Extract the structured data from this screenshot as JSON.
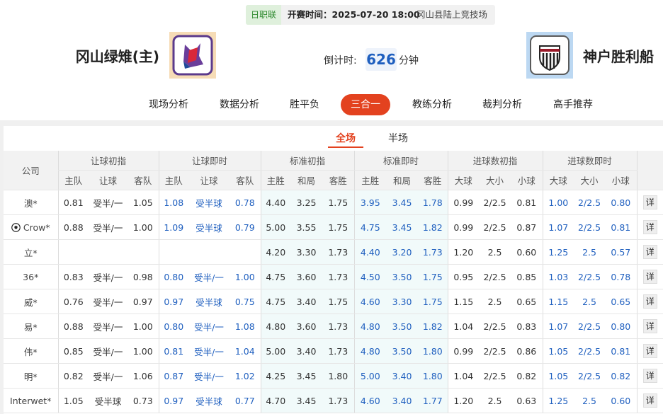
{
  "header": {
    "league": "日职联",
    "kickoff": "开赛时间：2025-07-20 18:00",
    "venue": "冈山县陆上竞技场"
  },
  "match": {
    "home": "冈山绿雉(主)",
    "countdown_label": "倒计时:",
    "countdown": "626",
    "countdown_unit": "分钟",
    "away": "神户胜利船"
  },
  "nav": {
    "items": [
      "现场分析",
      "数据分析",
      "胜平负",
      "三合一",
      "教练分析",
      "裁判分析",
      "高手推荐"
    ],
    "active": 3
  },
  "subtabs": {
    "items": [
      "全场",
      "半场"
    ],
    "active": 0
  },
  "table": {
    "company_label": "公司",
    "groups": [
      {
        "label": "让球初指",
        "columns": [
          "主队",
          "让球",
          "客队"
        ],
        "color": "#333333",
        "background": "#ffffff"
      },
      {
        "label": "让球即时",
        "columns": [
          "主队",
          "让球",
          "客队"
        ],
        "color": "#1f5fbf",
        "background": "#ffffff"
      },
      {
        "label": "标准初指",
        "columns": [
          "主胜",
          "和局",
          "客胜"
        ],
        "color": "#333333",
        "background": "#f1fafa"
      },
      {
        "label": "标准即时",
        "columns": [
          "主胜",
          "和局",
          "客胜"
        ],
        "color": "#1f5fbf",
        "background": "#f1fafa"
      },
      {
        "label": "进球数初指",
        "columns": [
          "大球",
          "大小",
          "小球"
        ],
        "color": "#333333",
        "background": "#ffffff"
      },
      {
        "label": "进球数即时",
        "columns": [
          "大球",
          "大小",
          "小球"
        ],
        "color": "#1f5fbf",
        "background": "#ffffff"
      }
    ],
    "rows": [
      {
        "company": "澳*",
        "detail": "详",
        "cells": [
          "0.81",
          "受半/一",
          "1.05",
          "1.08",
          "受半球",
          "0.78",
          "4.40",
          "3.25",
          "1.75",
          "3.95",
          "3.45",
          "1.78",
          "0.99",
          "2/2.5",
          "0.81",
          "1.00",
          "2/2.5",
          "0.80"
        ]
      },
      {
        "company": "Crow*",
        "icon": "football",
        "detail": "详",
        "cells": [
          "0.88",
          "受半/一",
          "1.00",
          "1.09",
          "受半球",
          "0.79",
          "5.00",
          "3.55",
          "1.75",
          "4.75",
          "3.45",
          "1.82",
          "0.99",
          "2/2.5",
          "0.87",
          "1.07",
          "2/2.5",
          "0.81"
        ]
      },
      {
        "company": "立*",
        "detail": "详",
        "cells": [
          null,
          null,
          null,
          null,
          null,
          null,
          "4.20",
          "3.30",
          "1.73",
          "4.40",
          "3.20",
          "1.73",
          "1.20",
          "2.5",
          "0.60",
          "1.25",
          "2.5",
          "0.57"
        ]
      },
      {
        "company": "36*",
        "detail": "详",
        "cells": [
          "0.83",
          "受半/一",
          "0.98",
          "0.80",
          "受半/一",
          "1.00",
          "4.75",
          "3.60",
          "1.73",
          "4.50",
          "3.50",
          "1.75",
          "0.95",
          "2/2.5",
          "0.85",
          "1.03",
          "2/2.5",
          "0.78"
        ]
      },
      {
        "company": "威*",
        "detail": "详",
        "cells": [
          "0.76",
          "受半/一",
          "0.97",
          "0.97",
          "受半球",
          "0.75",
          "4.75",
          "3.40",
          "1.75",
          "4.60",
          "3.30",
          "1.75",
          "1.15",
          "2.5",
          "0.65",
          "1.15",
          "2.5",
          "0.65"
        ]
      },
      {
        "company": "易*",
        "detail": "详",
        "cells": [
          "0.88",
          "受半/一",
          "1.00",
          "0.80",
          "受半/一",
          "1.08",
          "4.80",
          "3.60",
          "1.73",
          "4.80",
          "3.50",
          "1.82",
          "1.04",
          "2/2.5",
          "0.83",
          "1.07",
          "2/2.5",
          "0.80"
        ]
      },
      {
        "company": "伟*",
        "detail": "详",
        "cells": [
          "0.85",
          "受半/一",
          "1.00",
          "0.81",
          "受半/一",
          "1.04",
          "5.00",
          "3.40",
          "1.73",
          "4.80",
          "3.50",
          "1.80",
          "0.99",
          "2/2.5",
          "0.86",
          "1.05",
          "2/2.5",
          "0.81"
        ]
      },
      {
        "company": "明*",
        "detail": "详",
        "cells": [
          "0.82",
          "受半/一",
          "1.06",
          "0.87",
          "受半/一",
          "1.02",
          "4.25",
          "3.45",
          "1.80",
          "5.00",
          "3.40",
          "1.80",
          "1.04",
          "2/2.5",
          "0.82",
          "1.05",
          "2/2.5",
          "0.82"
        ]
      },
      {
        "company": "Interwet*",
        "detail": "详",
        "cells": [
          "1.05",
          "受半球",
          "0.73",
          "0.97",
          "受半球",
          "0.77",
          "4.70",
          "3.45",
          "1.73",
          "4.60",
          "3.40",
          "1.77",
          "1.20",
          "2.5",
          "0.63",
          "1.25",
          "2.5",
          "0.60"
        ]
      }
    ]
  }
}
